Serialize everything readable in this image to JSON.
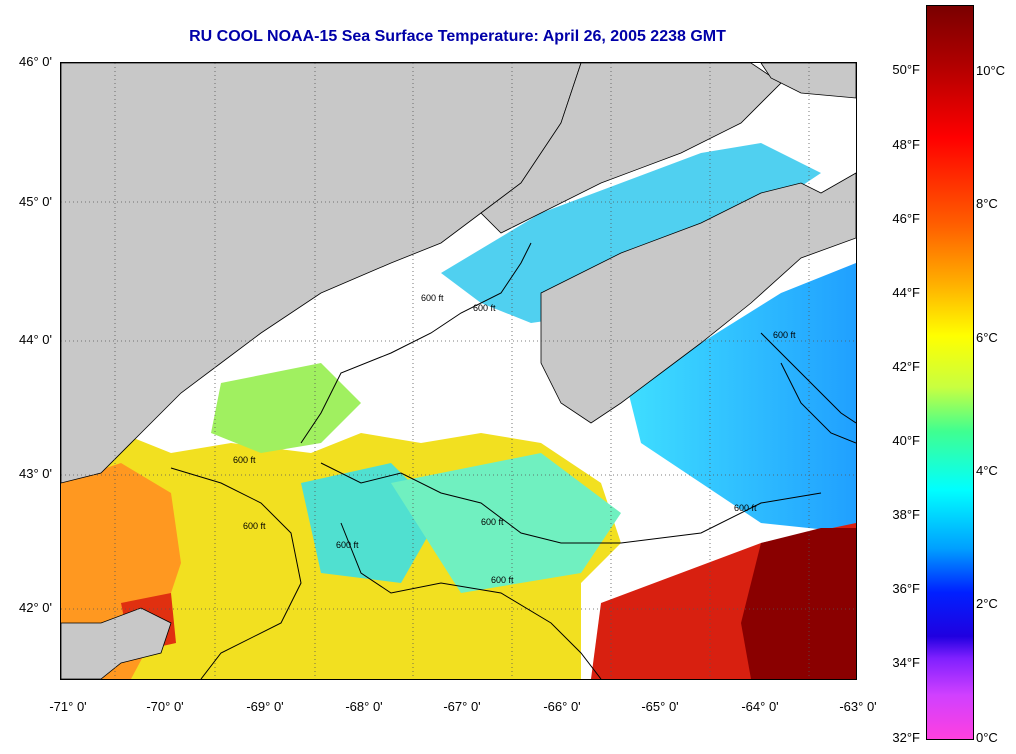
{
  "title": "RU COOL  NOAA-15  Sea Surface Temperature:  April 26, 2005 2238 GMT",
  "lat_labels": [
    "46° 0'",
    "45° 0'",
    "44° 0'",
    "43° 0'",
    "42° 0'"
  ],
  "lon_labels": [
    "-71° 0'",
    "-70° 0'",
    "-69° 0'",
    "-68° 0'",
    "-67° 0'",
    "-66° 0'",
    "-65° 0'",
    "-64° 0'",
    "-63° 0'"
  ],
  "isobath_label": "600 ft",
  "colorbar": {
    "f_labels": [
      "50°F",
      "48°F",
      "46°F",
      "44°F",
      "42°F",
      "40°F",
      "38°F",
      "36°F",
      "34°F",
      "32°F"
    ],
    "c_labels": [
      "10°C",
      "8°C",
      "6°C",
      "4°C",
      "2°C",
      "0°C"
    ]
  },
  "colors": {
    "title": "#0000a8",
    "land": "#c8c8c8",
    "cloud": "#ffffff"
  }
}
